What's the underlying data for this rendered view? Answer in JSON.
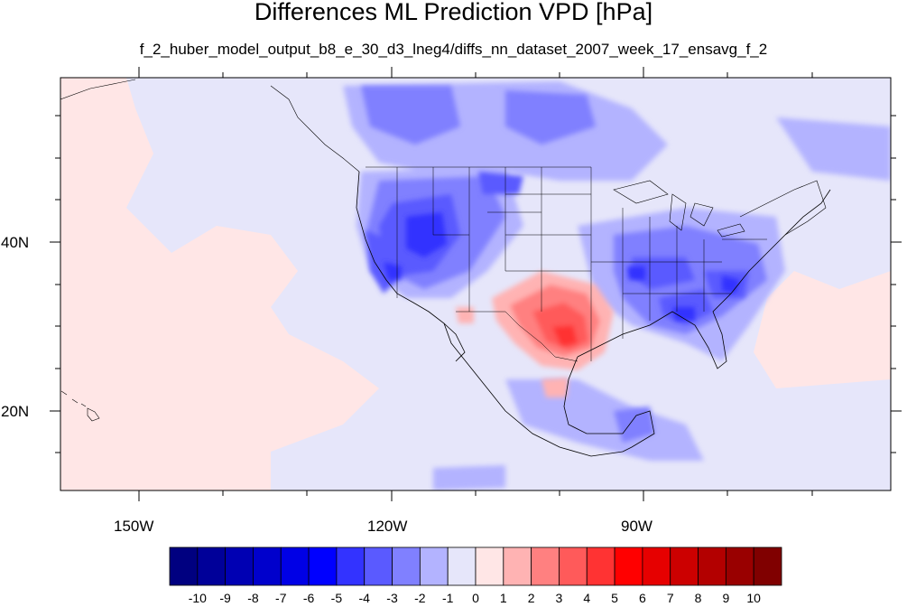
{
  "title": "Differences ML Prediction VPD [hPa]",
  "subtitle": "f_2_huber_model_output_b8_e_30_d3_lneg4/diffs_nn_dataset_2007_week_17_ensavg_f_2",
  "lon_labels": [
    "150W",
    "120W",
    "90W"
  ],
  "lat_labels": [
    "40N",
    "20N"
  ],
  "map_extent": {
    "lon": [
      -160,
      -62
    ],
    "lat": [
      11,
      59
    ]
  },
  "colorbar": {
    "tick_labels": [
      "-10",
      "-9",
      "-8",
      "-7",
      "-6",
      "-5",
      "-4",
      "-3",
      "-2",
      "-1",
      "0",
      "1",
      "2",
      "3",
      "4",
      "5",
      "6",
      "7",
      "8",
      "9",
      "10"
    ],
    "colors": [
      "#000080",
      "#000099",
      "#0000b3",
      "#0000cc",
      "#0000e6",
      "#0000ff",
      "#3333ff",
      "#5a5aff",
      "#8080ff",
      "#b3b3ff",
      "#e6e6fa",
      "#ffe6e6",
      "#ffb3b3",
      "#ff8080",
      "#ff5a5a",
      "#ff3333",
      "#ff0000",
      "#e60000",
      "#cc0000",
      "#b30000",
      "#990000",
      "#800000"
    ]
  },
  "land_color": "#e6e6fa",
  "ocean_color": "#ffe6e6"
}
